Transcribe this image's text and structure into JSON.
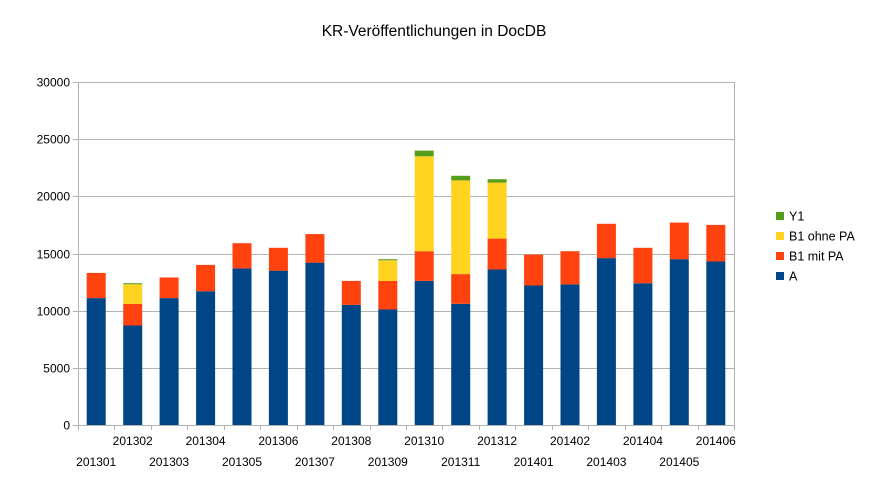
{
  "chart_data": {
    "type": "bar",
    "stacked": true,
    "title": "KR-Veröffentlichungen in DocDB",
    "xlabel": "",
    "ylabel": "",
    "ylim": [
      0,
      30000
    ],
    "yticks": [
      0,
      5000,
      10000,
      15000,
      20000,
      25000,
      30000
    ],
    "grid": true,
    "legend_position": "right",
    "categories": [
      "201301",
      "201302",
      "201303",
      "201304",
      "201305",
      "201306",
      "201307",
      "201308",
      "201309",
      "201310",
      "201311",
      "201312",
      "201401",
      "201402",
      "201403",
      "201404",
      "201405",
      "201406"
    ],
    "series": [
      {
        "name": "A",
        "color": "#004586",
        "values": [
          11100,
          8700,
          11100,
          11700,
          13700,
          13500,
          14200,
          10500,
          10100,
          12600,
          10600,
          13600,
          12200,
          12300,
          14600,
          12400,
          14500,
          14300
        ]
      },
      {
        "name": "B1 mit PA",
        "color": "#ff420e",
        "values": [
          2200,
          1900,
          1800,
          2300,
          2200,
          2000,
          2500,
          2100,
          2500,
          2600,
          2600,
          2700,
          2700,
          2900,
          3000,
          3100,
          3200,
          3200
        ]
      },
      {
        "name": "B1 ohne PA",
        "color": "#ffd320",
        "values": [
          0,
          1700,
          0,
          0,
          0,
          0,
          0,
          0,
          1800,
          8300,
          8200,
          4900,
          0,
          0,
          0,
          0,
          0,
          0
        ]
      },
      {
        "name": "Y1",
        "color": "#579d1c",
        "values": [
          0,
          100,
          0,
          0,
          0,
          0,
          0,
          0,
          100,
          500,
          400,
          300,
          0,
          0,
          0,
          0,
          0,
          0
        ]
      }
    ]
  }
}
